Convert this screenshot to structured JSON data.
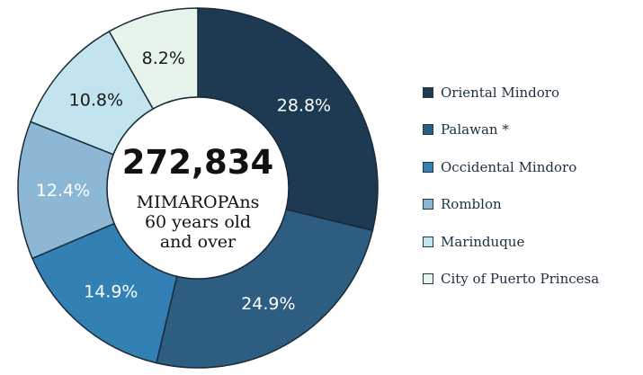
{
  "chart_data": {
    "type": "pie",
    "categories": [
      "Oriental Mindoro",
      "Palawan *",
      "Occidental Mindoro",
      "Romblon",
      "Marinduque",
      "City of Puerto Princesa"
    ],
    "values": [
      28.8,
      24.9,
      14.9,
      12.4,
      10.8,
      8.2
    ],
    "labels": [
      "28.8%",
      "24.9%",
      "14.9%",
      "12.4%",
      "10.8%",
      "8.2%"
    ],
    "colors": [
      "#1e3a52",
      "#2d5d80",
      "#3280b4",
      "#8cb8d6",
      "#c2e4ee",
      "#e6f4ec"
    ],
    "label_colors": [
      "#ffffff",
      "#ffffff",
      "#ffffff",
      "#ffffff",
      "#1a1a1a",
      "#1a1a1a"
    ],
    "center_value": "272,834",
    "center_text": [
      "MIMAROPAns",
      "60 years old",
      "and over"
    ],
    "legend_position": "right"
  }
}
